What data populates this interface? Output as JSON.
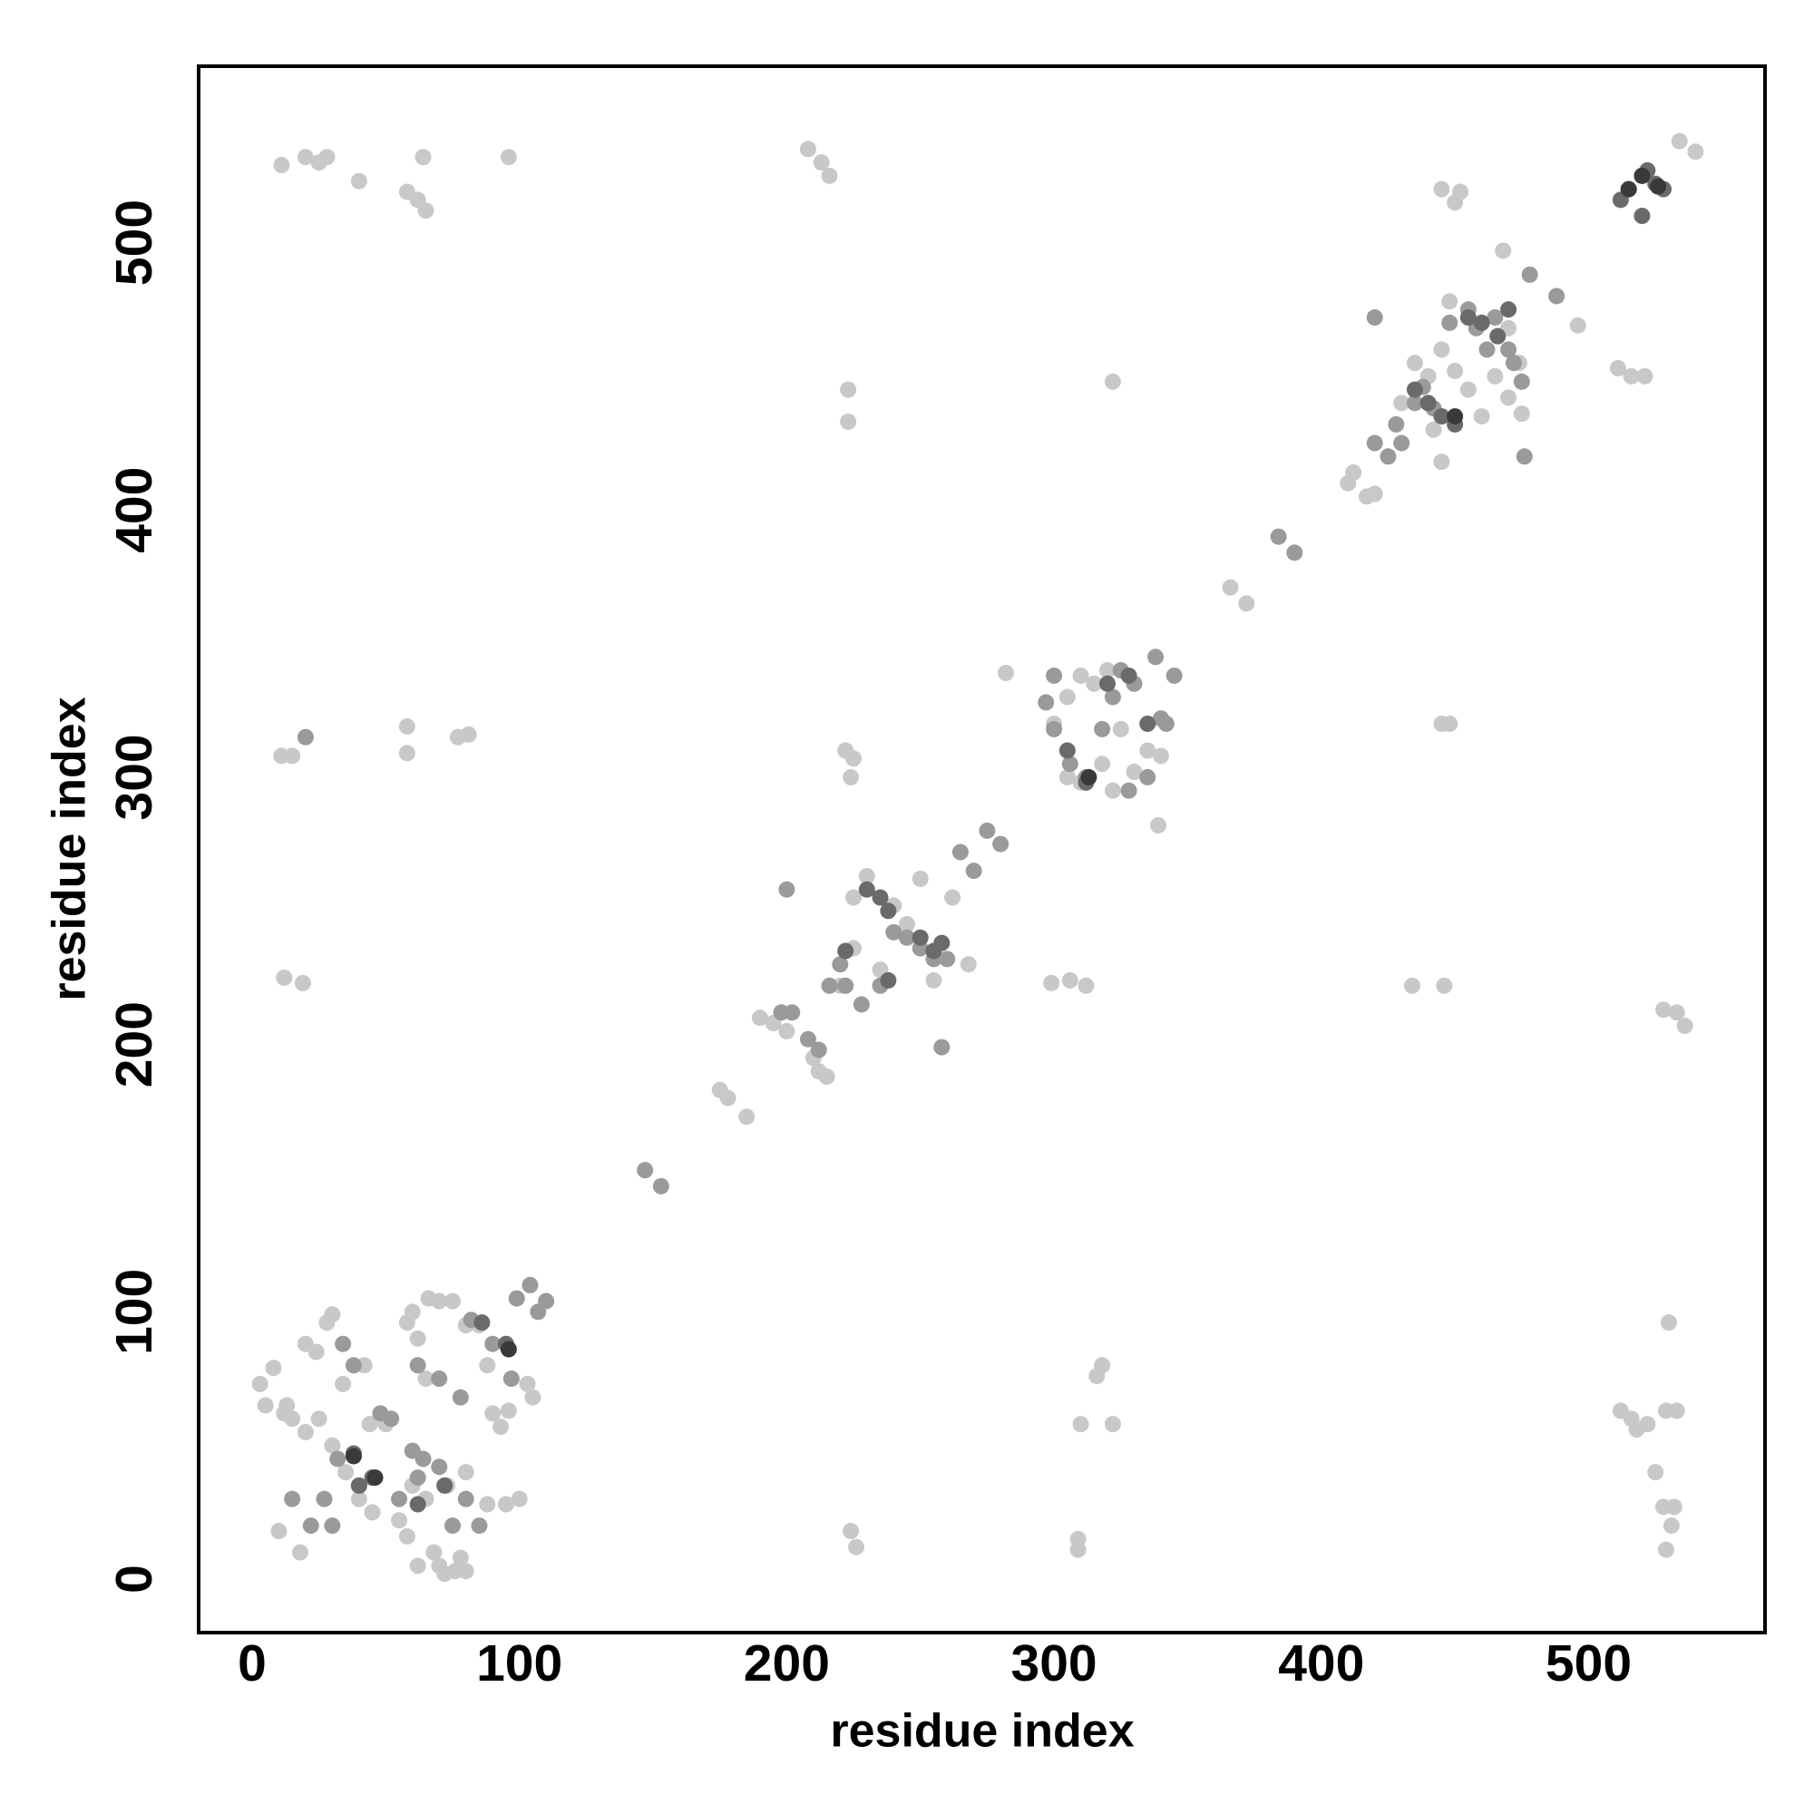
{
  "chart_data": {
    "type": "scatter",
    "x_label": "residue index",
    "y_label": "residue index",
    "xlim": [
      -20,
      566
    ],
    "ylim": [
      -20,
      566
    ],
    "xticks": [
      0,
      100,
      200,
      300,
      400,
      500
    ],
    "yticks": [
      0,
      100,
      200,
      300,
      400,
      500
    ],
    "grid": false,
    "series": [
      {
        "color": "#c8c8c8",
        "x": [
          11,
          20,
          25,
          28,
          40,
          58,
          62,
          65,
          64,
          96,
          208,
          213,
          216,
          223,
          223,
          322,
          445,
          450,
          452,
          11,
          15,
          58,
          58,
          77,
          81,
          222,
          224,
          225,
          12,
          19,
          299,
          306,
          312,
          434,
          446,
          445,
          448,
          282,
          339,
          366,
          372,
          410,
          412,
          417,
          420,
          175,
          178,
          185,
          224,
          226,
          309,
          309,
          310,
          322,
          316,
          318,
          528,
          533,
          536,
          511,
          516,
          521,
          530,
          512,
          516,
          518,
          522,
          525,
          528,
          532,
          531,
          529,
          529,
          533,
          534,
          540,
          468,
          496,
          3,
          5,
          8,
          12,
          15,
          20,
          24,
          28,
          30,
          34,
          42,
          44,
          50,
          58,
          60,
          62,
          65,
          66,
          70,
          75,
          80,
          85,
          88,
          90,
          93,
          96,
          100,
          103,
          105,
          60,
          65,
          68,
          70,
          72,
          76,
          78,
          80,
          62,
          58,
          55,
          45,
          40,
          35,
          30,
          25,
          20,
          10,
          18,
          13,
          73,
          80,
          88,
          95,
          190,
          195,
          200,
          210,
          212,
          215,
          220,
          225,
          230,
          235,
          240,
          245,
          250,
          255,
          262,
          268,
          225,
          300,
          305,
          310,
          315,
          320,
          305,
          310,
          318,
          322,
          330,
          335,
          340,
          325,
          435,
          440,
          445,
          450,
          455,
          460,
          465,
          470,
          475,
          430,
          448,
          442,
          445,
          470,
          474
        ],
        "y": [
          529,
          532,
          530,
          532,
          523,
          519,
          516,
          512,
          532,
          532,
          535,
          530,
          525,
          445,
          433,
          448,
          520,
          515,
          519,
          308,
          308,
          319,
          309,
          315,
          316,
          310,
          300,
          307,
          225,
          223,
          223,
          224,
          222,
          222,
          222,
          320,
          320,
          339,
          282,
          371,
          365,
          410,
          414,
          405,
          406,
          183,
          180,
          173,
          18,
          12,
          15,
          11,
          58,
          58,
          76,
          80,
          213,
          212,
          207,
          453,
          450,
          450,
          96,
          63,
          60,
          56,
          58,
          40,
          27,
          27,
          20,
          11,
          63,
          63,
          538,
          534,
          497,
          469,
          73,
          65,
          79,
          62,
          60,
          88,
          85,
          96,
          99,
          73,
          80,
          58,
          58,
          96,
          100,
          90,
          75,
          105,
          104,
          104,
          95,
          95,
          80,
          62,
          57,
          63,
          30,
          73,
          68,
          35,
          30,
          10,
          5,
          2,
          3,
          8,
          3,
          5,
          16,
          22,
          25,
          30,
          40,
          50,
          60,
          55,
          18,
          10,
          65,
          35,
          40,
          28,
          28,
          210,
          208,
          205,
          195,
          190,
          188,
          222,
          236,
          263,
          228,
          252,
          245,
          262,
          224,
          255,
          230,
          255,
          320,
          330,
          338,
          335,
          340,
          300,
          298,
          305,
          295,
          302,
          310,
          308,
          318,
          455,
          450,
          460,
          452,
          445,
          435,
          450,
          442,
          436,
          440,
          478,
          430,
          418,
          468,
          455
        ]
      },
      {
        "color": "#9a9a9a",
        "x": [
          20,
          27,
          30,
          34,
          38,
          48,
          52,
          62,
          64,
          70,
          78,
          82,
          90,
          97,
          99,
          104,
          107,
          110,
          75,
          80,
          85,
          40,
          32,
          60,
          62,
          70,
          55,
          15,
          22,
          198,
          202,
          208,
          212,
          216,
          220,
          222,
          228,
          235,
          240,
          245,
          250,
          255,
          260,
          265,
          270,
          275,
          280,
          200,
          258,
          147,
          153,
          297,
          300,
          306,
          312,
          318,
          322,
          325,
          330,
          328,
          335,
          340,
          342,
          345,
          338,
          300,
          420,
          420,
          425,
          428,
          430,
          435,
          438,
          442,
          448,
          455,
          458,
          462,
          465,
          470,
          472,
          475,
          478,
          488,
          476,
          384,
          390
        ],
        "y": [
          315,
          30,
          20,
          88,
          80,
          62,
          60,
          80,
          45,
          75,
          68,
          97,
          88,
          75,
          105,
          110,
          100,
          104,
          20,
          30,
          20,
          35,
          45,
          48,
          38,
          42,
          30,
          30,
          20,
          212,
          212,
          202,
          198,
          222,
          230,
          222,
          215,
          222,
          242,
          240,
          236,
          232,
          232,
          272,
          265,
          280,
          275,
          258,
          199,
          153,
          147,
          328,
          318,
          305,
          300,
          318,
          330,
          340,
          335,
          295,
          300,
          322,
          320,
          338,
          345,
          338,
          472,
          425,
          420,
          432,
          425,
          440,
          446,
          438,
          470,
          475,
          468,
          460,
          472,
          460,
          455,
          448,
          488,
          480,
          420,
          390,
          384
        ]
      },
      {
        "color": "#6a6a6a",
        "x": [
          38,
          45,
          86,
          95,
          72,
          62,
          40,
          230,
          235,
          238,
          250,
          255,
          258,
          222,
          238,
          305,
          312,
          320,
          328,
          335,
          435,
          440,
          445,
          450,
          455,
          460,
          466,
          470,
          512,
          515,
          520,
          522,
          525,
          528,
          520
        ],
        "y": [
          47,
          38,
          96,
          88,
          35,
          28,
          35,
          258,
          255,
          250,
          240,
          235,
          238,
          235,
          224,
          310,
          298,
          335,
          338,
          320,
          445,
          440,
          435,
          432,
          472,
          470,
          465,
          475,
          516,
          520,
          510,
          527,
          522,
          520,
          525
        ]
      },
      {
        "color": "#3a3a3a",
        "x": [
          38,
          46,
          96,
          313,
          450,
          515,
          520,
          526
        ],
        "y": [
          46,
          38,
          86,
          300,
          435,
          520,
          525,
          521
        ]
      }
    ]
  }
}
